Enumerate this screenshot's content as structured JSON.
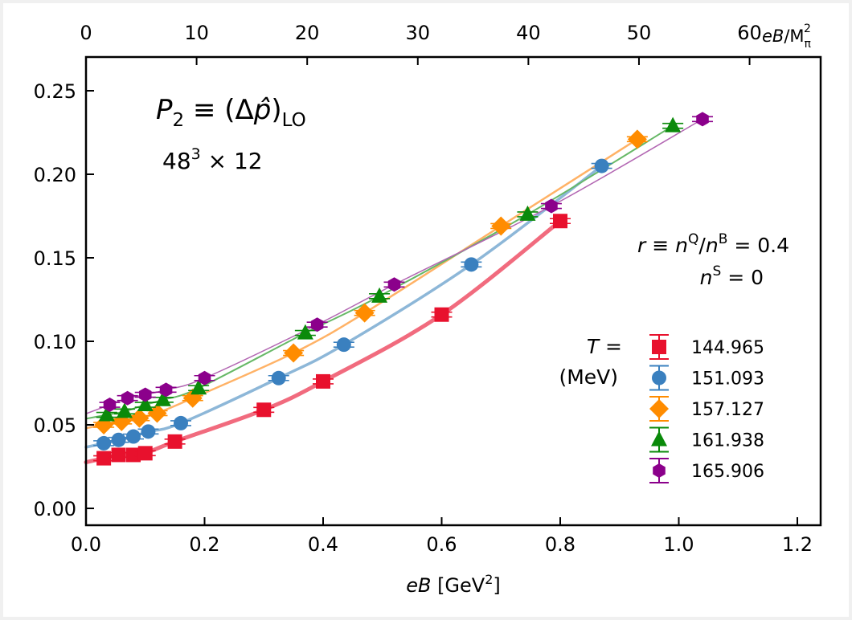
{
  "chart_data": {
    "type": "scatter",
    "title": "",
    "xlabel": "eB [GeV²]",
    "xlabel_parts": {
      "italic": "eB",
      "rest": " [GeV",
      "sup": "2",
      "close": "]"
    },
    "ylabel": "",
    "xlim": [
      0.0,
      1.24
    ],
    "ylim": [
      -0.01,
      0.27
    ],
    "xticks": [
      0.0,
      0.2,
      0.4,
      0.6,
      0.8,
      1.0,
      1.2
    ],
    "xtick_labels": [
      "0.0",
      "0.2",
      "0.4",
      "0.6",
      "0.8",
      "1.0",
      "1.2"
    ],
    "yticks": [
      0.0,
      0.05,
      0.1,
      0.15,
      0.2,
      0.25
    ],
    "ytick_labels": [
      "0.00",
      "0.05",
      "0.10",
      "0.15",
      "0.20",
      "0.25"
    ],
    "top_axis": {
      "label": "eB/M_π²",
      "label_parts": {
        "italic": "eB",
        "rest": "/M",
        "sub": "π",
        "sup": "2"
      },
      "ticks": [
        0,
        10,
        20,
        30,
        40,
        50,
        60
      ],
      "tick_labels": [
        "0",
        "10",
        "20",
        "30",
        "40",
        "50",
        "60"
      ],
      "conversion_per_GeV2": 53.6
    },
    "grid": false,
    "annotations": {
      "observable": {
        "main": "P",
        "sub": "2",
        "eq": " ≡ (Δ",
        "phat": "p̂",
        "close": ")",
        "sub2": "LO"
      },
      "lattice": {
        "base": "48",
        "sup": "3",
        "rest": " × 12"
      },
      "ratio": {
        "text": "r ≡ n^Q/n^B = 0.4"
      },
      "strangeness": {
        "text": "n^S = 0"
      }
    },
    "legend": {
      "title_line1": "T =",
      "title_line2": "(MeV)",
      "placement": "center-right"
    },
    "series": [
      {
        "name": "144.965",
        "color": "#e8112d",
        "line_color": "#f16b7e",
        "marker": "square",
        "x": [
          0.03,
          0.055,
          0.08,
          0.1,
          0.15,
          0.3,
          0.4,
          0.6,
          0.8
        ],
        "y": [
          0.03,
          0.032,
          0.032,
          0.033,
          0.04,
          0.059,
          0.076,
          0.116,
          0.172
        ]
      },
      {
        "name": "151.093",
        "color": "#3a80bf",
        "line_color": "#8db7d8",
        "marker": "circle",
        "x": [
          0.03,
          0.055,
          0.08,
          0.105,
          0.16,
          0.325,
          0.435,
          0.65,
          0.87
        ],
        "y": [
          0.039,
          0.041,
          0.043,
          0.046,
          0.051,
          0.078,
          0.098,
          0.146,
          0.205
        ]
      },
      {
        "name": "157.127",
        "color": "#ff8c00",
        "line_color": "#ffb266",
        "marker": "diamond",
        "x": [
          0.03,
          0.06,
          0.09,
          0.12,
          0.18,
          0.35,
          0.47,
          0.7,
          0.93
        ],
        "y": [
          0.05,
          0.052,
          0.054,
          0.057,
          0.066,
          0.093,
          0.117,
          0.169,
          0.221
        ]
      },
      {
        "name": "161.938",
        "color": "#0a8a0a",
        "line_color": "#66b866",
        "marker": "triangle",
        "x": [
          0.035,
          0.065,
          0.1,
          0.13,
          0.19,
          0.37,
          0.495,
          0.745,
          0.99
        ],
        "y": [
          0.056,
          0.058,
          0.062,
          0.065,
          0.072,
          0.105,
          0.127,
          0.176,
          0.229
        ]
      },
      {
        "name": "165.906",
        "color": "#8b008b",
        "line_color": "#b266b2",
        "marker": "hexagon",
        "x": [
          0.04,
          0.07,
          0.1,
          0.135,
          0.2,
          0.39,
          0.52,
          0.785,
          1.04
        ],
        "y": [
          0.062,
          0.066,
          0.068,
          0.071,
          0.078,
          0.11,
          0.134,
          0.181,
          0.233
        ]
      }
    ]
  }
}
